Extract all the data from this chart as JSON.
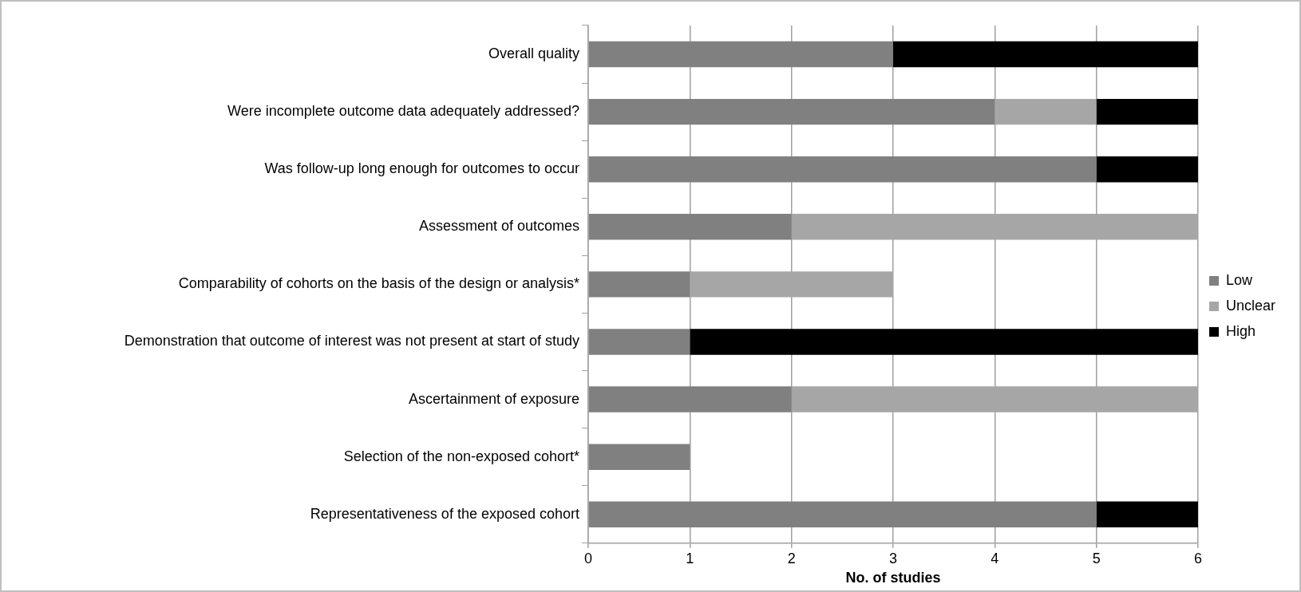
{
  "chart_data": {
    "type": "bar",
    "orientation": "horizontal",
    "stacked": true,
    "xlabel": "No. of studies",
    "categories": [
      "Overall quality",
      "Were incomplete outcome data adequately addressed?",
      "Was follow-up long enough for outcomes to occur",
      "Assessment of outcomes",
      "Comparability of cohorts on the basis of the design or analysis*",
      "Demonstration that outcome of interest was not present at start of study",
      "Ascertainment of exposure",
      "Selection of the non-exposed cohort*",
      "Representativeness of the exposed cohort"
    ],
    "series": [
      {
        "name": "Low",
        "color": "#808080",
        "values": [
          3,
          4,
          5,
          2,
          1,
          1,
          2,
          1,
          5
        ]
      },
      {
        "name": "Unclear",
        "color": "#a6a6a6",
        "values": [
          0,
          1,
          0,
          4,
          2,
          0,
          4,
          0,
          0
        ]
      },
      {
        "name": "High",
        "color": "#000000",
        "values": [
          3,
          1,
          1,
          0,
          0,
          5,
          0,
          0,
          1
        ]
      }
    ],
    "xlim": [
      0,
      6
    ],
    "xticks": [
      0,
      1,
      2,
      3,
      4,
      5,
      6
    ],
    "grid": "x",
    "legend": "right"
  }
}
